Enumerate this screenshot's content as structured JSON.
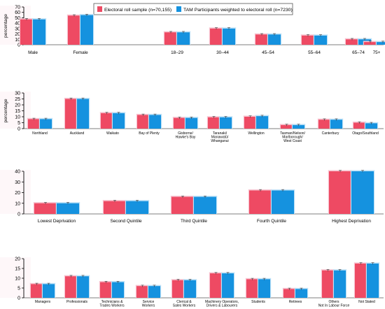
{
  "colors": {
    "electoral": "#ee4a63",
    "tam": "#1592df",
    "halo_red": "#f7c2cf",
    "halo_blue": "#bfe2f7",
    "axis": "#000000"
  },
  "legend": {
    "items": [
      {
        "label": "Electoral roll sample (n=70,155)",
        "color": "#ee4a63"
      },
      {
        "label": "TAM Participants weighted to electoral roll (n=7230)",
        "color": "#1592df"
      }
    ]
  },
  "chart_data": [
    {
      "type": "bar",
      "ylabel": "percentage",
      "ylim": [
        0,
        70
      ],
      "yticks": [
        0,
        10,
        20,
        30,
        40,
        50,
        60,
        70
      ],
      "categories": [
        "Male",
        "Female",
        "18–29",
        "30–44",
        "45–54",
        "55–64",
        "65–74",
        "75+"
      ],
      "series": [
        {
          "name": "Electoral roll sample (n=70,155)",
          "values": [
            47,
            54,
            23,
            30,
            19,
            17,
            10,
            5
          ]
        },
        {
          "name": "TAM Participants weighted to electoral roll (n=7230)",
          "values": [
            47,
            55,
            23,
            30,
            19,
            17,
            10,
            5
          ]
        }
      ]
    },
    {
      "type": "bar",
      "ylabel": "percentage",
      "ylim": [
        0,
        30
      ],
      "yticks": [
        0,
        5,
        10,
        15,
        20,
        25,
        30
      ],
      "categories": [
        "Northland",
        "Auckland",
        "Waikato",
        "Bay of Plenty",
        "Gisborne/\nHawke's Bay",
        "Taranaki/\nManawatū/\nWhanganui",
        "Wellington",
        "Tasman/Nelson/\nMarlborough/\nWest Coast",
        "Canterbury",
        "Otago/Southland"
      ],
      "series": [
        {
          "name": "Electoral roll sample (n=70,155)",
          "values": [
            8,
            25,
            13,
            11.5,
            9,
            9.5,
            10,
            3,
            7.5,
            5
          ]
        },
        {
          "name": "TAM Participants weighted to electoral roll (n=7230)",
          "values": [
            8,
            25,
            13,
            11.5,
            9,
            9.5,
            10.5,
            3,
            7.5,
            4.5
          ]
        }
      ]
    },
    {
      "type": "bar",
      "ylim": [
        0,
        40
      ],
      "yticks": [
        0,
        10,
        20,
        30,
        40
      ],
      "categories": [
        "Lowest Deprivation",
        "Second Quintile",
        "Third Quintile",
        "Fourth Quintile",
        "Highest Deprivation"
      ],
      "series": [
        {
          "name": "Electoral roll sample (n=70,155)",
          "values": [
            10,
            12,
            16,
            22,
            40
          ]
        },
        {
          "name": "TAM Participants weighted to electoral roll (n=7230)",
          "values": [
            10,
            12,
            16,
            22,
            40
          ]
        }
      ]
    },
    {
      "type": "bar",
      "ylim": [
        0,
        20
      ],
      "yticks": [
        0,
        5,
        10,
        15,
        20
      ],
      "categories": [
        "Managers",
        "Professionals",
        "Technicians &\nTrades Workers",
        "Service\nWorkers",
        "Clerical &\nSales Workers",
        "Machinery Operators,\nDrivers & Labourers",
        "Students",
        "Retirees",
        "Others\nNot In Labour Force",
        "Not Stated"
      ],
      "series": [
        {
          "name": "Electoral roll sample (n=70,155)",
          "values": [
            7,
            11,
            8,
            6,
            9,
            12.5,
            9.5,
            4.5,
            14,
            17.5
          ]
        },
        {
          "name": "TAM Participants weighted to electoral roll (n=7230)",
          "values": [
            7,
            11,
            8,
            6,
            9,
            12.5,
            9.5,
            4.5,
            14,
            17.5
          ]
        }
      ]
    }
  ]
}
